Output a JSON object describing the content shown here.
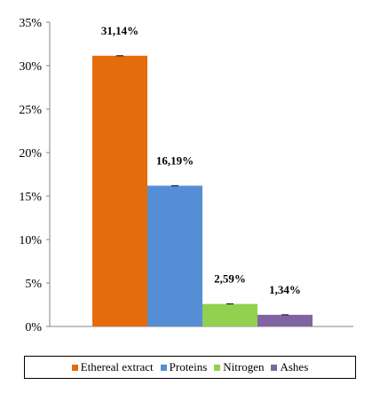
{
  "chart_data": {
    "type": "bar",
    "title": "",
    "xlabel": "",
    "ylabel": "",
    "categories": [
      "Ethereal extract",
      "Proteins",
      "Nitrogen",
      "Ashes"
    ],
    "values": [
      31.14,
      16.19,
      2.59,
      1.34
    ],
    "data_labels": [
      "31,14%",
      "16,19%",
      "2,59%",
      "1,34%"
    ],
    "colors": [
      "#E46C0A",
      "#558ED5",
      "#92D050",
      "#8064A2"
    ],
    "ylim": [
      0,
      35
    ],
    "yticks": [
      0,
      5,
      10,
      15,
      20,
      25,
      30,
      35
    ],
    "ytick_labels": [
      "0%",
      "5%",
      "10%",
      "15%",
      "20%",
      "25%",
      "30%",
      "35%"
    ],
    "error_bars": true,
    "grid": false,
    "legend_position": "bottom"
  }
}
